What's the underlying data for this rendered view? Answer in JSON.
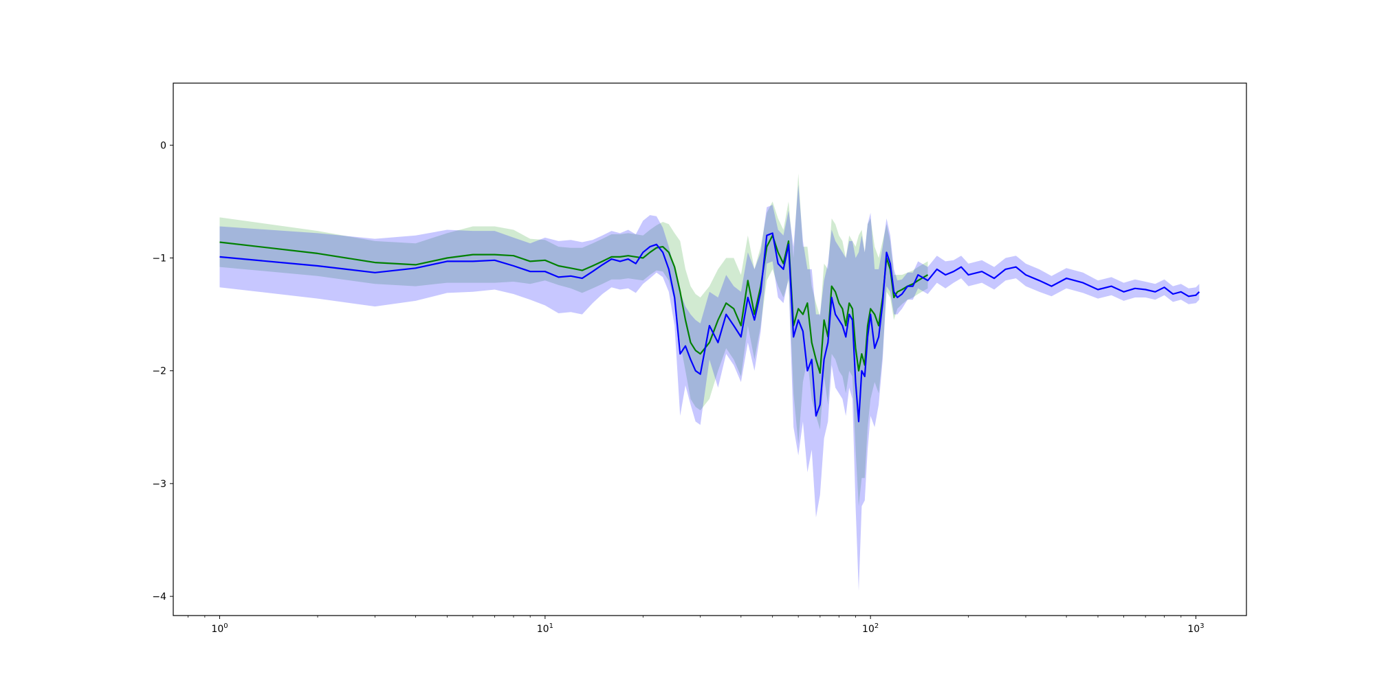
{
  "chart_data": {
    "type": "line",
    "title": "",
    "xlabel": "",
    "ylabel": "",
    "xscale": "log",
    "xlim": [
      0.72,
      1430
    ],
    "ylim": [
      -4.17,
      0.55
    ],
    "grid": false,
    "legend": "none",
    "x_ticks": [
      {
        "value": 1,
        "base": "10",
        "exp": "0"
      },
      {
        "value": 10,
        "base": "10",
        "exp": "1"
      },
      {
        "value": 100,
        "base": "10",
        "exp": "2"
      },
      {
        "value": 1000,
        "base": "10",
        "exp": "3"
      }
    ],
    "y_ticks": [
      {
        "value": 0,
        "label": "0"
      },
      {
        "value": -1,
        "label": "−1"
      },
      {
        "value": -2,
        "label": "−2"
      },
      {
        "value": -3,
        "label": "−3"
      },
      {
        "value": -4,
        "label": "−4"
      }
    ],
    "series": [
      {
        "color": "#008000",
        "band_color": "#2ca02c",
        "x": [
          1,
          2,
          3,
          4,
          5,
          6,
          7,
          8,
          9,
          10,
          11,
          12,
          13,
          14,
          15,
          16,
          17,
          18,
          19,
          20,
          21,
          22,
          23,
          24,
          25,
          26,
          27,
          28,
          29,
          30,
          32,
          34,
          36,
          38,
          40,
          42,
          44,
          46,
          48,
          50,
          52,
          54,
          56,
          58,
          60,
          62,
          64,
          66,
          68,
          70,
          72,
          74,
          76,
          78,
          80,
          82,
          84,
          86,
          88,
          90,
          92,
          94,
          96,
          98,
          100,
          103,
          106,
          109,
          112,
          115,
          118,
          121,
          125,
          130,
          135,
          140,
          150
        ],
        "y": [
          -0.86,
          -0.96,
          -1.04,
          -1.06,
          -1.0,
          -0.97,
          -0.97,
          -0.98,
          -1.03,
          -1.02,
          -1.07,
          -1.09,
          -1.11,
          -1.07,
          -1.03,
          -0.99,
          -0.99,
          -0.98,
          -0.99,
          -1.0,
          -0.95,
          -0.91,
          -0.9,
          -0.95,
          -1.08,
          -1.3,
          -1.55,
          -1.75,
          -1.82,
          -1.85,
          -1.75,
          -1.55,
          -1.4,
          -1.45,
          -1.6,
          -1.2,
          -1.5,
          -1.25,
          -0.9,
          -0.8,
          -0.95,
          -1.05,
          -0.85,
          -1.6,
          -1.45,
          -1.5,
          -1.4,
          -1.75,
          -1.9,
          -2.02,
          -1.55,
          -1.7,
          -1.25,
          -1.3,
          -1.4,
          -1.45,
          -1.6,
          -1.4,
          -1.45,
          -1.8,
          -2.0,
          -1.85,
          -1.95,
          -1.6,
          -1.45,
          -1.5,
          -1.6,
          -1.35,
          -1.0,
          -1.1,
          -1.35,
          -1.3,
          -1.28,
          -1.25,
          -1.23,
          -1.2,
          -1.15
        ],
        "err": [
          0.22,
          0.2,
          0.19,
          0.19,
          0.22,
          0.25,
          0.25,
          0.23,
          0.2,
          0.18,
          0.17,
          0.18,
          0.2,
          0.2,
          0.2,
          0.2,
          0.2,
          0.2,
          0.2,
          0.2,
          0.2,
          0.2,
          0.22,
          0.25,
          0.3,
          0.45,
          0.45,
          0.5,
          0.5,
          0.5,
          0.5,
          0.45,
          0.4,
          0.45,
          0.45,
          0.4,
          0.4,
          0.35,
          0.3,
          0.3,
          0.3,
          0.3,
          0.35,
          0.6,
          1.2,
          0.6,
          0.5,
          0.5,
          0.5,
          0.5,
          0.5,
          0.6,
          0.6,
          0.6,
          0.6,
          0.6,
          0.6,
          0.6,
          0.6,
          0.9,
          1.2,
          1.1,
          1.0,
          0.9,
          0.8,
          0.6,
          0.6,
          0.5,
          0.3,
          0.25,
          0.2,
          0.15,
          0.13,
          0.12,
          0.12,
          0.12,
          0.12
        ]
      },
      {
        "color": "#0000ff",
        "band_color": "#0000ff",
        "x": [
          1,
          2,
          3,
          4,
          5,
          6,
          7,
          8,
          9,
          10,
          11,
          12,
          13,
          14,
          15,
          16,
          17,
          18,
          19,
          20,
          21,
          22,
          23,
          24,
          25,
          26,
          27,
          28,
          29,
          30,
          32,
          34,
          36,
          38,
          40,
          42,
          44,
          46,
          48,
          50,
          52,
          54,
          56,
          58,
          60,
          62,
          64,
          66,
          68,
          70,
          72,
          74,
          76,
          78,
          80,
          82,
          84,
          86,
          88,
          90,
          92,
          94,
          96,
          98,
          100,
          103,
          106,
          109,
          112,
          115,
          118,
          121,
          125,
          130,
          135,
          140,
          150,
          160,
          170,
          180,
          190,
          200,
          220,
          240,
          260,
          280,
          300,
          330,
          360,
          400,
          450,
          500,
          550,
          600,
          650,
          700,
          750,
          800,
          850,
          900,
          950,
          1000,
          1024
        ],
        "y": [
          -0.99,
          -1.07,
          -1.13,
          -1.09,
          -1.03,
          -1.03,
          -1.02,
          -1.07,
          -1.12,
          -1.12,
          -1.17,
          -1.16,
          -1.18,
          -1.12,
          -1.06,
          -1.01,
          -1.03,
          -1.01,
          -1.05,
          -0.95,
          -0.9,
          -0.88,
          -0.95,
          -1.1,
          -1.35,
          -1.85,
          -1.78,
          -1.9,
          -2.0,
          -2.03,
          -1.6,
          -1.75,
          -1.5,
          -1.6,
          -1.7,
          -1.35,
          -1.55,
          -1.3,
          -0.8,
          -0.78,
          -1.05,
          -1.1,
          -0.88,
          -1.7,
          -1.55,
          -1.65,
          -2.0,
          -1.9,
          -2.4,
          -2.3,
          -1.9,
          -1.75,
          -1.35,
          -1.5,
          -1.55,
          -1.6,
          -1.7,
          -1.5,
          -1.55,
          -2.1,
          -2.45,
          -2.0,
          -2.05,
          -1.7,
          -1.5,
          -1.8,
          -1.7,
          -1.4,
          -0.95,
          -1.05,
          -1.3,
          -1.35,
          -1.32,
          -1.25,
          -1.25,
          -1.15,
          -1.2,
          -1.1,
          -1.15,
          -1.12,
          -1.08,
          -1.15,
          -1.12,
          -1.18,
          -1.1,
          -1.08,
          -1.15,
          -1.2,
          -1.25,
          -1.18,
          -1.22,
          -1.28,
          -1.25,
          -1.3,
          -1.27,
          -1.28,
          -1.3,
          -1.26,
          -1.32,
          -1.3,
          -1.34,
          -1.33,
          -1.3
        ],
        "err": [
          0.27,
          0.29,
          0.3,
          0.29,
          0.28,
          0.27,
          0.26,
          0.25,
          0.25,
          0.3,
          0.32,
          0.32,
          0.32,
          0.28,
          0.26,
          0.25,
          0.25,
          0.26,
          0.26,
          0.28,
          0.28,
          0.25,
          0.22,
          0.2,
          0.25,
          0.55,
          0.35,
          0.4,
          0.45,
          0.45,
          0.3,
          0.4,
          0.35,
          0.35,
          0.4,
          0.4,
          0.45,
          0.35,
          0.25,
          0.25,
          0.3,
          0.3,
          0.3,
          0.8,
          1.2,
          0.8,
          0.9,
          0.8,
          0.9,
          0.8,
          0.7,
          0.7,
          0.6,
          0.65,
          0.65,
          0.65,
          0.7,
          0.65,
          0.7,
          1.1,
          1.5,
          1.2,
          1.1,
          1.0,
          0.9,
          0.7,
          0.6,
          0.5,
          0.3,
          0.25,
          0.2,
          0.15,
          0.13,
          0.12,
          0.12,
          0.12,
          0.12,
          0.12,
          0.12,
          0.1,
          0.1,
          0.1,
          0.1,
          0.1,
          0.1,
          0.1,
          0.1,
          0.1,
          0.09,
          0.09,
          0.09,
          0.08,
          0.08,
          0.08,
          0.08,
          0.07,
          0.07,
          0.07,
          0.07,
          0.07,
          0.07,
          0.07,
          0.07
        ]
      }
    ]
  }
}
